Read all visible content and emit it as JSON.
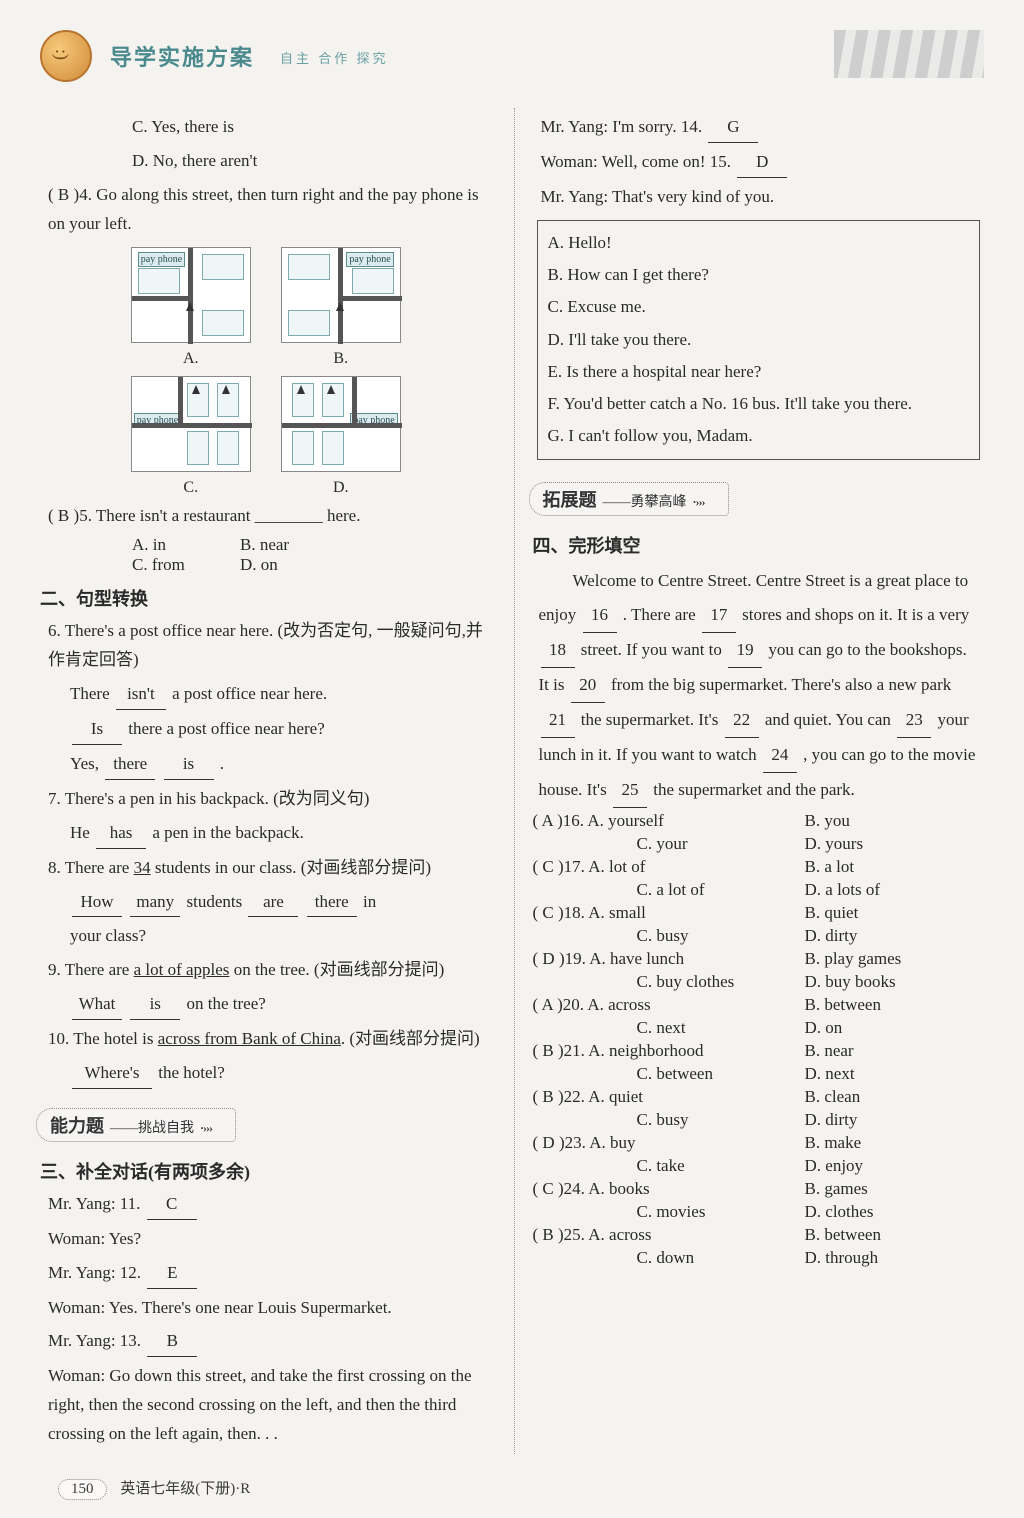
{
  "header": {
    "title": "导学实施方案",
    "sub": "自主 合作 探究"
  },
  "left": {
    "optC": "C. Yes, there is",
    "optD": "D. No, there aren't",
    "q4": {
      "answer": "B",
      "text": "4. Go along this street, then turn right and the pay phone is on your left.",
      "payphone": "pay phone",
      "labels": {
        "A": "A.",
        "B": "B.",
        "C": "C.",
        "D": "D."
      }
    },
    "q5": {
      "answer": "B",
      "stem": "5. There isn't a restaurant ________ here.",
      "optA": "A. in",
      "optB": "B. near",
      "optC": "C. from",
      "optD": "D. on"
    },
    "sec2": {
      "heading": "二、句型转换",
      "q6": {
        "stem": "6. There's a post office near here. (改为否定句, 一般疑问句,并作肯定回答)",
        "l1a": "There",
        "l1b": "isn't",
        "l1c": "a post office near here.",
        "l2a": "Is",
        "l2b": "there a post office near here?",
        "l3a": "Yes,",
        "l3b": "there",
        "l3c": "is",
        "l3d": "."
      },
      "q7": {
        "stem": "7. There's a pen in his backpack. (改为同义句)",
        "l1a": "He",
        "l1b": "has",
        "l1c": "a pen in the backpack."
      },
      "q8": {
        "stem_a": "8. There are ",
        "stem_u": "34",
        "stem_b": " students in our class. (对画线部分提问)",
        "l1a": "How",
        "l1b": "many",
        "l1c": "students",
        "l1d": "are",
        "l1e": "there",
        "l1f": "in",
        "l2": "your class?"
      },
      "q9": {
        "stem_a": "9. There are ",
        "stem_u": "a lot of apples",
        "stem_b": " on the tree. (对画线部分提问)",
        "l1a": "What",
        "l1b": "is",
        "l1c": "on the tree?"
      },
      "q10": {
        "stem_a": "10. The hotel is ",
        "stem_u": "across from Bank of China",
        "stem_b": ". (对画线部分提问)",
        "l1a": "Where's",
        "l1b": "the hotel?"
      }
    },
    "badge1": {
      "main": "能力题",
      "script": "——挑战自我",
      "arrow": "·›››"
    },
    "sec3": {
      "heading": "三、补全对话(有两项多余)",
      "d1a": "Mr. Yang: 11.",
      "d1b": "C",
      "d2": "Woman: Yes?",
      "d3a": "Mr. Yang: 12.",
      "d3b": "E",
      "d4": "Woman: Yes. There's one near Louis Supermarket.",
      "d5a": "Mr. Yang: 13.",
      "d5b": "B",
      "d6": "Woman: Go down this street, and take the first crossing on the right, then the second crossing on the left, and then the third crossing on the left again, then. . ."
    }
  },
  "right": {
    "d7a": "Mr. Yang: I'm sorry. 14.",
    "d7b": "G",
    "d8a": "Woman: Well, come on! 15.",
    "d8b": "D",
    "d9": "Mr. Yang: That's very kind of you.",
    "box": {
      "A": "A. Hello!",
      "B": "B. How can I get there?",
      "C": "C. Excuse me.",
      "D": "D. I'll take you there.",
      "E": "E. Is there a hospital near here?",
      "F": "F. You'd better catch a No. 16 bus. It'll take you there.",
      "G": "G. I can't follow you, Madam."
    },
    "badge2": {
      "main": "拓展题",
      "script": "——勇攀高峰",
      "arrow": "·›››"
    },
    "sec4heading": "四、完形填空",
    "cloze_parts": {
      "indent": "　　",
      "p1": "Welcome to Centre Street. Centre Street is a great place to enjoy ",
      "p2": " . There are ",
      "p3": " stores and shops on it. It is a very ",
      "p4": " street. If you want to ",
      "p5": " you can go to the bookshops. It is ",
      "p6": " from the big supermarket. There's also a new park ",
      "p7": " the supermarket. It's ",
      "p8": " and quiet. You can ",
      "p9": " your lunch in it. If you want to watch ",
      "p10": " , you can go to the movie house. It's ",
      "p11": " the supermarket and the park.",
      "b16": "16",
      "b17": "17",
      "b18": "18",
      "b19": "19",
      "b20": "20",
      "b21": "21",
      "b22": "22",
      "b23": "23",
      "b24": "24",
      "b25": "25"
    },
    "cloze_opts": {
      "16": {
        "ans": "A",
        "A": "A. yourself",
        "B": "B. you",
        "C": "C. your",
        "D": "D. yours"
      },
      "17": {
        "ans": "C",
        "A": "A. lot of",
        "B": "B. a lot",
        "C": "C. a lot of",
        "D": "D. a lots of"
      },
      "18": {
        "ans": "C",
        "A": "A. small",
        "B": "B. quiet",
        "C": "C. busy",
        "D": "D. dirty"
      },
      "19": {
        "ans": "D",
        "A": "A. have lunch",
        "B": "B. play games",
        "C": "C. buy clothes",
        "D": "D. buy books"
      },
      "20": {
        "ans": "A",
        "A": "A. across",
        "B": "B. between",
        "C": "C. next",
        "D": "D. on"
      },
      "21": {
        "ans": "B",
        "A": "A. neighborhood",
        "B": "B. near",
        "C": "C. between",
        "D": "D. next"
      },
      "22": {
        "ans": "B",
        "A": "A. quiet",
        "B": "B. clean",
        "C": "C. busy",
        "D": "D. dirty"
      },
      "23": {
        "ans": "D",
        "A": "A. buy",
        "B": "B. make",
        "C": "C. take",
        "D": "D. enjoy"
      },
      "24": {
        "ans": "C",
        "A": "A. books",
        "B": "B. games",
        "C": "C. movies",
        "D": "D. clothes"
      },
      "25": {
        "ans": "B",
        "A": "A. across",
        "B": "B. between",
        "C": "C. down",
        "D": "D. through"
      }
    }
  },
  "footer": {
    "page": "150",
    "text": "英语七年级(下册)·R"
  }
}
